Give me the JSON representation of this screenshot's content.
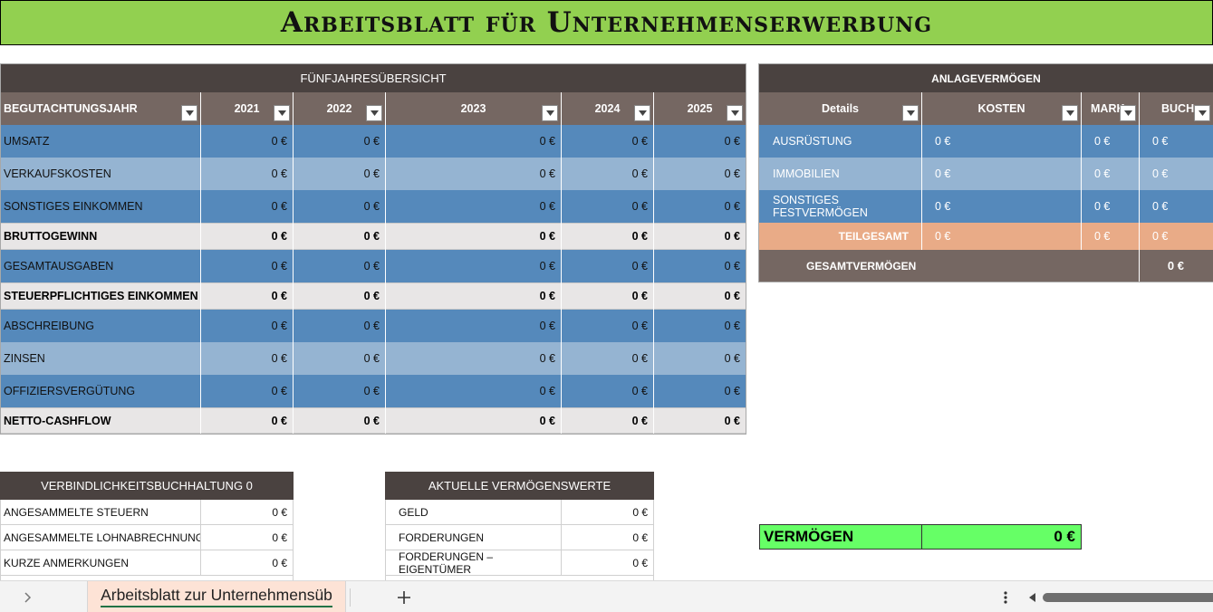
{
  "title": "Arbeitsblatt für Unternehmenserwerbung",
  "overview": {
    "heading": "FÜNFJAHRESÜBERSICHT",
    "col_header": "BEGUTACHTUNGSJAHR",
    "years": [
      "2021",
      "2022",
      "2023",
      "2024",
      "2025"
    ],
    "rows": [
      {
        "label": "UMSATZ",
        "values": [
          "0 €",
          "0 €",
          "0 €",
          "0 €",
          "0 €"
        ]
      },
      {
        "label": "VERKAUFSKOSTEN",
        "values": [
          "0 €",
          "0 €",
          "0 €",
          "0 €",
          "0 €"
        ]
      },
      {
        "label": "SONSTIGES EINKOMMEN",
        "values": [
          "0 €",
          "0 €",
          "0 €",
          "0 €",
          "0 €"
        ]
      },
      {
        "label": "BRUTTOGEWINN",
        "values": [
          "0 €",
          "0 €",
          "0 €",
          "0 €",
          "0 €"
        ]
      },
      {
        "label": "GESAMTAUSGABEN",
        "values": [
          "0 €",
          "0 €",
          "0 €",
          "0 €",
          "0 €"
        ]
      },
      {
        "label": "STEUERPFLICHTIGES EINKOMMEN",
        "values": [
          "0 €",
          "0 €",
          "0 €",
          "0 €",
          "0 €"
        ]
      },
      {
        "label": "ABSCHREIBUNG",
        "values": [
          "0 €",
          "0 €",
          "0 €",
          "0 €",
          "0 €"
        ]
      },
      {
        "label": "ZINSEN",
        "values": [
          "0 €",
          "0 €",
          "0 €",
          "0 €",
          "0 €"
        ]
      },
      {
        "label": "OFFIZIERSVERGÜTUNG",
        "values": [
          "0 €",
          "0 €",
          "0 €",
          "0 €",
          "0 €"
        ]
      },
      {
        "label": "NETTO-CASHFLOW",
        "values": [
          "0 €",
          "0 €",
          "0 €",
          "0 €",
          "0 €"
        ]
      }
    ]
  },
  "fixed_assets": {
    "heading": "ANLAGEVERMÖGEN",
    "columns": [
      "Details",
      "KOSTEN",
      "MARK",
      "BUCH"
    ],
    "rows": [
      {
        "label": "AUSRÜSTUNG",
        "values": [
          "0 €",
          "0 €",
          "0 €"
        ]
      },
      {
        "label": "IMMOBILIEN",
        "values": [
          "0 €",
          "0 €",
          "0 €"
        ]
      },
      {
        "label_line1": "SONSTIGES",
        "label_line2": "FESTVERMÖGEN",
        "values": [
          "0 €",
          "0 €",
          "0 €"
        ]
      }
    ],
    "subtotal": {
      "label": "TEILGESAMT",
      "values": [
        "0 €",
        "0 €",
        "0 €"
      ]
    },
    "total": {
      "label": "GESAMTVERMÖGEN",
      "value": "0 €"
    }
  },
  "liabilities": {
    "heading": "VERBINDLICHKEITSBUCHHALTUNG 0",
    "rows": [
      {
        "label": "ANGESAMMELTE STEUERN",
        "value": "0 €"
      },
      {
        "label": "ANGESAMMELTE LOHNABRECHNUNG",
        "value": "0 €"
      },
      {
        "label": "KURZE ANMERKUNGEN",
        "value": "0 €"
      }
    ]
  },
  "current_assets": {
    "heading": "AKTUELLE VERMÖGENSWERTE",
    "rows": [
      {
        "label": "GELD",
        "value": "0 €"
      },
      {
        "label": "FORDERUNGEN",
        "value": "0 €"
      },
      {
        "label_line1": "FORDERUNGEN –",
        "label_line2": "EIGENTÜMER",
        "value": "0 €"
      }
    ]
  },
  "assets_total": {
    "label": "VERMÖGEN",
    "value": "0 €"
  },
  "sheet_tab": {
    "label": "Arbeitsblatt zur Unternehmensüb"
  },
  "colors": {
    "title_bg": "#92d050",
    "header_dark": "#4a4240",
    "header_mid": "#756762",
    "row_dark": "#5589bb",
    "row_light": "#95b4d2",
    "subtotal": "#e9ab87",
    "assets_total_bg": "#66ff66"
  }
}
